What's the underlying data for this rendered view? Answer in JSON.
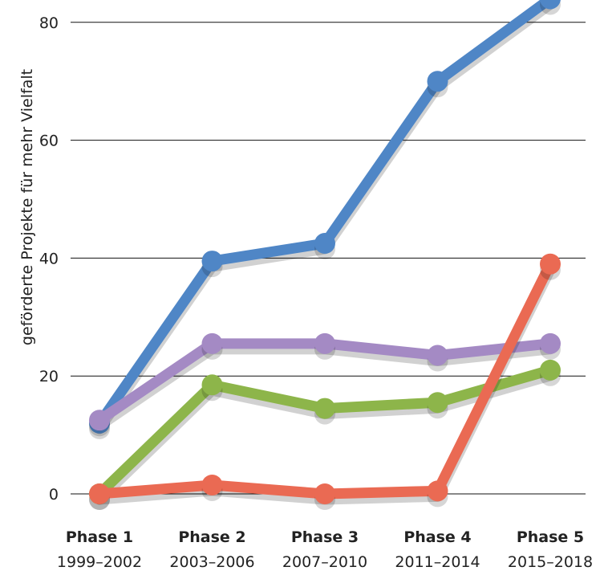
{
  "chart_data": {
    "type": "line",
    "title": "",
    "xlabel": "",
    "ylabel": "geförderte Projekte für mehr Vielfalt",
    "categories": [
      {
        "name": "Phase 1",
        "period": "1999–2002"
      },
      {
        "name": "Phase 2",
        "period": "2003–2006"
      },
      {
        "name": "Phase 3",
        "period": "2007–2010"
      },
      {
        "name": "Phase 4",
        "period": "2011–2014"
      },
      {
        "name": "Phase 5",
        "period": "2015–2018"
      }
    ],
    "ylim": [
      0,
      80
    ],
    "yticks": [
      0,
      20,
      40,
      60,
      80
    ],
    "grid": true,
    "series": [
      {
        "color": "#4f86c6",
        "values": [
          12,
          39.5,
          42.5,
          70,
          84
        ]
      },
      {
        "color": "#a48ac4",
        "values": [
          12.5,
          25.5,
          25.5,
          23.5,
          25.5
        ]
      },
      {
        "color": "#8db54a",
        "values": [
          0,
          18.5,
          14.5,
          15.5,
          21
        ]
      },
      {
        "color": "#ea6a53",
        "values": [
          0,
          1.5,
          0,
          0.5,
          39
        ]
      }
    ]
  }
}
